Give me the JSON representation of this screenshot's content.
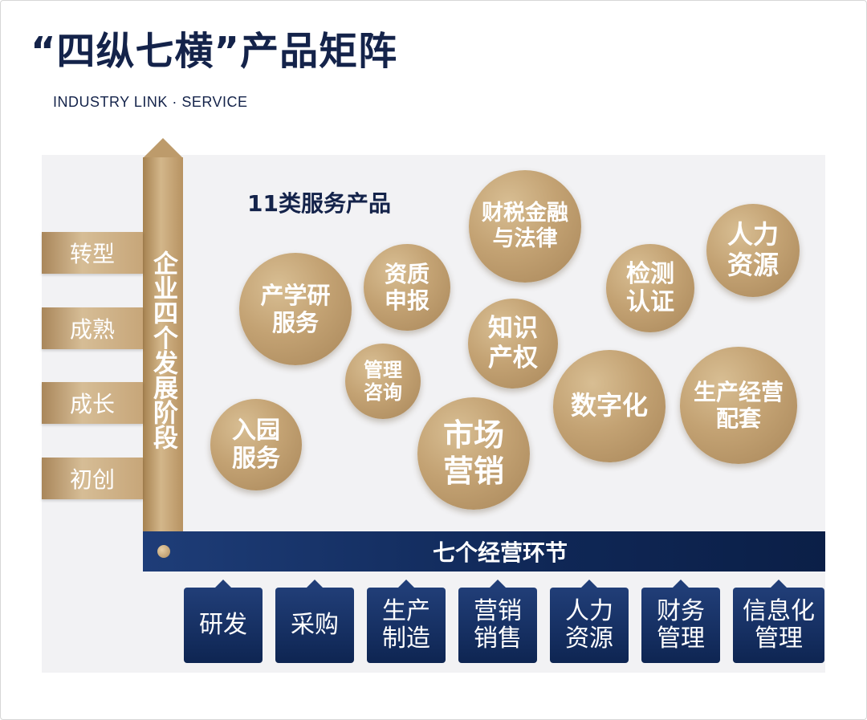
{
  "title": "“四纵七横”产品矩阵",
  "subtitle": "INDUSTRY LINK · SERVICE",
  "vertical_axis": {
    "label": "企业四个发展阶段",
    "stages": [
      "转型",
      "成熟",
      "成长",
      "初创"
    ]
  },
  "products": {
    "title": "11类服务产品",
    "items": [
      "财税金融\n与法律",
      "人力\n资源",
      "资质\n申报",
      "产学研\n服务",
      "检测\n认证",
      "知识\n产权",
      "管理\n咨询",
      "数字化",
      "生产经营\n配套",
      "入园\n服务",
      "市场\n营销"
    ]
  },
  "business_links": {
    "title": "七个经营环节",
    "items": [
      "研发",
      "采购",
      "生产\n制造",
      "营销\n销售",
      "人力\n资源",
      "财务\n管理",
      "信息化\n管理"
    ]
  },
  "colors": {
    "navy": "#14234a",
    "gold": "#c3a273",
    "panel": "#f2f2f4"
  }
}
